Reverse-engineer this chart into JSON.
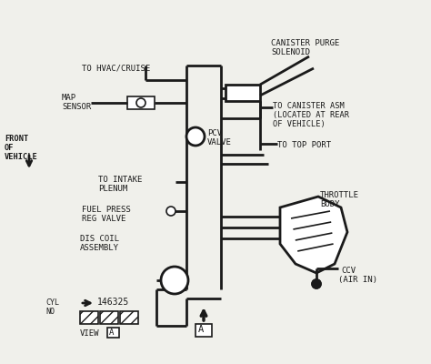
{
  "bg_color": "#f0f0eb",
  "line_color": "#1a1a1a",
  "lw": 2.0,
  "lw_thin": 1.2,
  "labels": {
    "hvac": "TO HVAC/CRUISE",
    "map1": "MAP",
    "map2": "SENSOR",
    "pcv1": "PCV",
    "pcv2": "VALVE",
    "front1": "FRONT",
    "front2": "OF",
    "front3": "VEHICLE",
    "intake1": "TO INTAKE",
    "intake2": "PLENUM",
    "fuel1": "FUEL PRESS",
    "fuel2": "REG VALVE",
    "dis1": "DIS COIL",
    "dis2": "ASSEMBLY",
    "cyl1": "CYL",
    "cyl2": "NO",
    "cyl_num": "146325",
    "view_word": "VIEW",
    "view_letter": "A",
    "canister_purge1": "CANISTER PURGE",
    "canister_purge2": "SOLENOID",
    "canister_asm1": "TO CANISTER ASM",
    "canister_asm2": "(LOCATED AT REAR",
    "canister_asm3": "OF VEHICLE)",
    "top_port": "TO TOP PORT",
    "throttle1": "THROTTLE",
    "throttle2": "BODY",
    "ccv1": "CCV",
    "ccv2": "(AIR IN)"
  }
}
